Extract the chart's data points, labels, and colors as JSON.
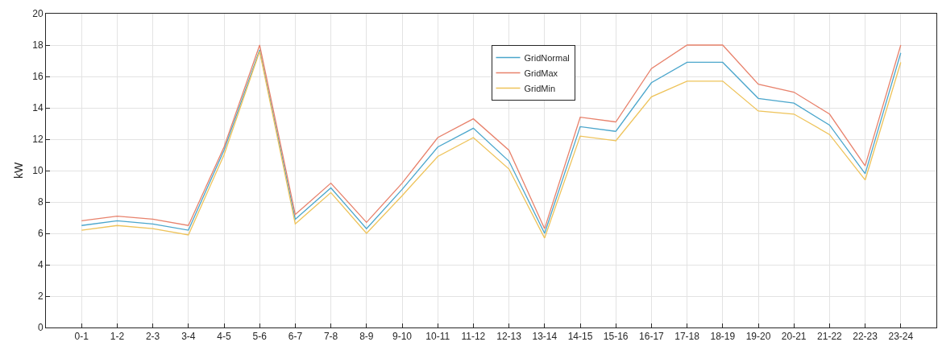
{
  "chart_data": {
    "type": "line",
    "ylabel": "kW",
    "categories": [
      "0-1",
      "1-2",
      "2-3",
      "3-4",
      "4-5",
      "5-6",
      "6-7",
      "7-8",
      "8-9",
      "9-10",
      "10-11",
      "11-12",
      "12-13",
      "13-14",
      "14-15",
      "15-16",
      "16-17",
      "17-18",
      "18-19",
      "19-20",
      "20-21",
      "21-22",
      "22-23",
      "23-24"
    ],
    "series": [
      {
        "name": "GridNormal",
        "color": "#4ba6cc",
        "values": [
          6.5,
          6.8,
          6.6,
          6.2,
          11.3,
          17.7,
          6.9,
          8.9,
          6.3,
          8.8,
          11.5,
          12.7,
          10.6,
          6.0,
          12.8,
          12.5,
          15.6,
          16.9,
          16.9,
          14.6,
          14.3,
          12.9,
          9.8,
          17.5
        ]
      },
      {
        "name": "GridMax",
        "color": "#e8826c",
        "values": [
          6.8,
          7.1,
          6.9,
          6.5,
          11.5,
          18.0,
          7.2,
          9.2,
          6.7,
          9.2,
          12.1,
          13.3,
          11.3,
          6.3,
          13.4,
          13.1,
          16.5,
          18.0,
          18.0,
          15.5,
          15.0,
          13.6,
          10.3,
          18.0
        ]
      },
      {
        "name": "GridMin",
        "color": "#eec35a",
        "values": [
          6.2,
          6.5,
          6.3,
          5.9,
          11.0,
          17.6,
          6.6,
          8.6,
          6.0,
          8.4,
          10.9,
          12.1,
          10.1,
          5.7,
          12.2,
          11.9,
          14.7,
          15.7,
          15.7,
          13.8,
          13.6,
          12.3,
          9.4,
          16.9
        ]
      }
    ],
    "ylim": [
      0,
      20
    ],
    "yticks": [
      0,
      2,
      4,
      6,
      8,
      10,
      12,
      14,
      16,
      18,
      20
    ],
    "grid": true,
    "legend": "top",
    "marker": "none",
    "line_style": "solid"
  }
}
